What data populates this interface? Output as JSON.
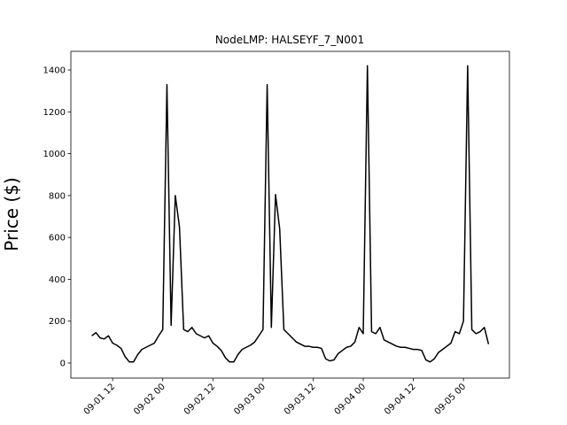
{
  "chart_data": {
    "type": "line",
    "title": "NodeLMP: HALSEYF_7_N001",
    "y_label": "Price ($)",
    "color": "#000000",
    "x": [
      "09-01 07",
      "09-01 08",
      "09-01 09",
      "09-01 10",
      "09-01 11",
      "09-01 12",
      "09-01 13",
      "09-01 14",
      "09-01 15",
      "09-01 16",
      "09-01 17",
      "09-01 18",
      "09-01 19",
      "09-01 20",
      "09-01 21",
      "09-01 22",
      "09-01 23",
      "09-02 00",
      "09-02 01",
      "09-02 02",
      "09-02 03",
      "09-02 04",
      "09-02 05",
      "09-02 06",
      "09-02 07",
      "09-02 08",
      "09-02 09",
      "09-02 10",
      "09-02 11",
      "09-02 12",
      "09-02 13",
      "09-02 14",
      "09-02 15",
      "09-02 16",
      "09-02 17",
      "09-02 18",
      "09-02 19",
      "09-02 20",
      "09-02 21",
      "09-02 22",
      "09-02 23",
      "09-03 00",
      "09-03 01",
      "09-03 02",
      "09-03 03",
      "09-03 04",
      "09-03 05",
      "09-03 06",
      "09-03 07",
      "09-03 08",
      "09-03 09",
      "09-03 10",
      "09-03 11",
      "09-03 12",
      "09-03 13",
      "09-03 14",
      "09-03 15",
      "09-03 16",
      "09-03 17",
      "09-03 18",
      "09-03 19",
      "09-03 20",
      "09-03 21",
      "09-03 22",
      "09-03 23",
      "09-04 00",
      "09-04 01",
      "09-04 02",
      "09-04 03",
      "09-04 04",
      "09-04 05",
      "09-04 06",
      "09-04 07",
      "09-04 08",
      "09-04 09",
      "09-04 10",
      "09-04 11",
      "09-04 12",
      "09-04 13",
      "09-04 14",
      "09-04 15",
      "09-04 16",
      "09-04 17",
      "09-04 18",
      "09-04 19",
      "09-04 20",
      "09-04 21",
      "09-04 22",
      "09-04 23",
      "09-05 00",
      "09-05 01",
      "09-05 02",
      "09-05 03",
      "09-05 04",
      "09-05 05",
      "09-05 06"
    ],
    "values": [
      130,
      145,
      120,
      115,
      130,
      95,
      85,
      70,
      30,
      5,
      5,
      40,
      65,
      75,
      85,
      95,
      130,
      160,
      1330,
      180,
      800,
      650,
      160,
      150,
      170,
      140,
      130,
      120,
      130,
      95,
      80,
      60,
      25,
      5,
      5,
      40,
      65,
      75,
      85,
      100,
      130,
      160,
      1330,
      170,
      805,
      640,
      160,
      140,
      120,
      100,
      90,
      80,
      80,
      75,
      75,
      70,
      20,
      10,
      15,
      45,
      60,
      75,
      80,
      100,
      170,
      140,
      1420,
      150,
      140,
      170,
      110,
      100,
      90,
      80,
      75,
      75,
      70,
      65,
      65,
      60,
      15,
      5,
      20,
      50,
      65,
      80,
      95,
      150,
      140,
      200,
      1420,
      160,
      140,
      150,
      170,
      90
    ],
    "xlim": [
      "09-01 02",
      "09-05 11"
    ],
    "xticks": [
      "09-01 12",
      "09-02 00",
      "09-02 12",
      "09-03 00",
      "09-03 12",
      "09-04 00",
      "09-04 12",
      "09-05 00"
    ],
    "ylim": [
      -72,
      1489
    ],
    "yticks": [
      0,
      200,
      400,
      600,
      800,
      1000,
      1200,
      1400
    ]
  }
}
